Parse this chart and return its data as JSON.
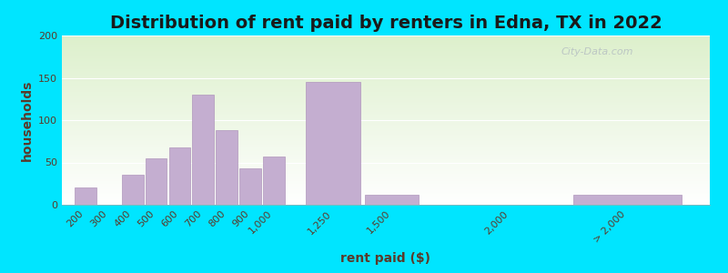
{
  "title": "Distribution of rent paid by renters in Edna, TX in 2022",
  "xlabel": "rent paid ($)",
  "ylabel": "households",
  "bar_color": "#c4aed0",
  "bar_edge_color": "#b096bc",
  "background_outer": "#00e5ff",
  "categories": [
    "200",
    "300",
    "400",
    "500",
    "600",
    "700",
    "800",
    "900",
    "1,000",
    "1,250",
    "1,500",
    "2,000",
    "> 2,000"
  ],
  "tick_positions": [
    200,
    300,
    400,
    500,
    600,
    700,
    800,
    900,
    1000,
    1250,
    1500,
    2000,
    2500
  ],
  "bar_lefts": [
    150,
    250,
    350,
    450,
    550,
    650,
    750,
    850,
    950,
    1125,
    1375,
    1750,
    2250
  ],
  "bar_widths": [
    100,
    100,
    100,
    100,
    100,
    100,
    100,
    100,
    100,
    250,
    250,
    500,
    500
  ],
  "values": [
    20,
    0,
    35,
    55,
    68,
    130,
    88,
    43,
    57,
    145,
    12,
    0,
    12
  ],
  "ylim": [
    0,
    200
  ],
  "yticks": [
    0,
    50,
    100,
    150,
    200
  ],
  "watermark": "City-Data.com",
  "title_fontsize": 14,
  "axis_label_fontsize": 10,
  "bg_colors": [
    "#f2fce8",
    "#e0f0d0"
  ]
}
